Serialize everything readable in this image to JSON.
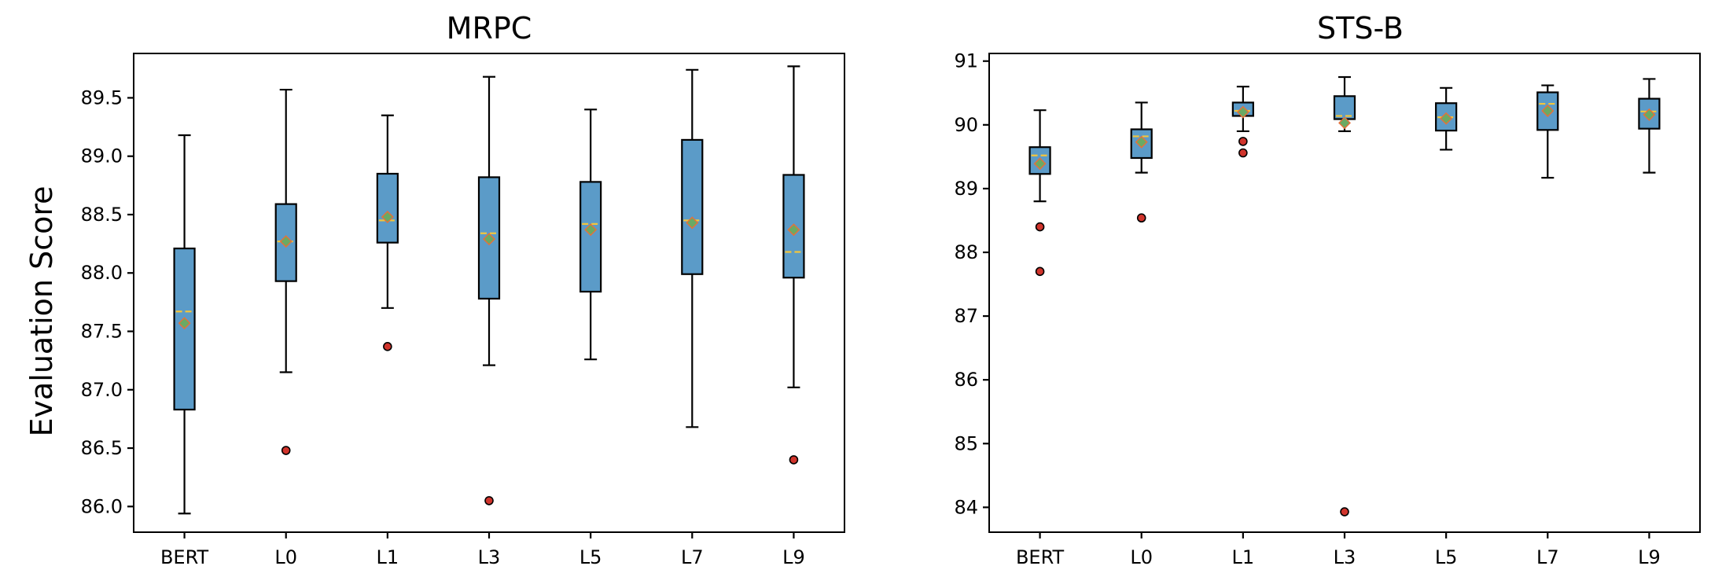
{
  "chart_data": [
    {
      "type": "box",
      "title": "MRPC",
      "ylabel": "Evaluation Score",
      "categories": [
        "BERT",
        "L0",
        "L1",
        "L3",
        "L5",
        "L7",
        "L9"
      ],
      "ylim": [
        85.78,
        89.88
      ],
      "yticks": [
        86.0,
        86.5,
        87.0,
        87.5,
        88.0,
        88.5,
        89.0,
        89.5
      ],
      "ytick_labels": [
        "86.0",
        "86.5",
        "87.0",
        "87.5",
        "88.0",
        "88.5",
        "89.0",
        "89.5"
      ],
      "grid": false,
      "boxes": [
        {
          "label": "BERT",
          "whislo": 85.94,
          "q1": 86.83,
          "med": 87.67,
          "mean": 87.57,
          "q3": 88.21,
          "whishi": 89.18,
          "fliers": []
        },
        {
          "label": "L0",
          "whislo": 87.15,
          "q1": 87.93,
          "med": 88.27,
          "mean": 88.27,
          "q3": 88.59,
          "whishi": 89.57,
          "fliers": [
            86.48
          ]
        },
        {
          "label": "L1",
          "whislo": 87.7,
          "q1": 88.26,
          "med": 88.45,
          "mean": 88.48,
          "q3": 88.85,
          "whishi": 89.35,
          "fliers": [
            87.37
          ]
        },
        {
          "label": "L3",
          "whislo": 87.21,
          "q1": 87.78,
          "med": 88.34,
          "mean": 88.29,
          "q3": 88.82,
          "whishi": 89.68,
          "fliers": [
            86.05
          ]
        },
        {
          "label": "L5",
          "whislo": 87.26,
          "q1": 87.84,
          "med": 88.42,
          "mean": 88.37,
          "q3": 88.78,
          "whishi": 89.4,
          "fliers": []
        },
        {
          "label": "L7",
          "whislo": 86.68,
          "q1": 87.99,
          "med": 88.45,
          "mean": 88.43,
          "q3": 89.14,
          "whishi": 89.74,
          "fliers": []
        },
        {
          "label": "L9",
          "whislo": 87.02,
          "q1": 87.96,
          "med": 88.18,
          "mean": 88.37,
          "q3": 88.84,
          "whishi": 89.77,
          "fliers": [
            86.4
          ]
        }
      ]
    },
    {
      "type": "box",
      "title": "STS-B",
      "ylabel": "",
      "categories": [
        "BERT",
        "L0",
        "L1",
        "L3",
        "L5",
        "L7",
        "L9"
      ],
      "ylim": [
        83.61,
        91.12
      ],
      "yticks": [
        84,
        85,
        86,
        87,
        88,
        89,
        90,
        91
      ],
      "ytick_labels": [
        "84",
        "85",
        "86",
        "87",
        "88",
        "89",
        "90",
        "91"
      ],
      "grid": false,
      "boxes": [
        {
          "label": "BERT",
          "whislo": 88.8,
          "q1": 89.23,
          "med": 89.52,
          "mean": 89.39,
          "q3": 89.65,
          "whishi": 90.23,
          "fliers": [
            88.4,
            87.7
          ]
        },
        {
          "label": "L0",
          "whislo": 89.25,
          "q1": 89.48,
          "med": 89.82,
          "mean": 89.73,
          "q3": 89.93,
          "whishi": 90.35,
          "fliers": [
            88.54
          ]
        },
        {
          "label": "L1",
          "whislo": 89.9,
          "q1": 90.14,
          "med": 90.22,
          "mean": 90.2,
          "q3": 90.35,
          "whishi": 90.6,
          "fliers": [
            89.74,
            89.56
          ]
        },
        {
          "label": "L3",
          "whislo": 89.9,
          "q1": 90.09,
          "med": 90.14,
          "mean": 90.03,
          "q3": 90.45,
          "whishi": 90.75,
          "fliers": [
            83.93
          ]
        },
        {
          "label": "L5",
          "whislo": 89.61,
          "q1": 89.91,
          "med": 90.12,
          "mean": 90.1,
          "q3": 90.34,
          "whishi": 90.58,
          "fliers": []
        },
        {
          "label": "L7",
          "whislo": 89.17,
          "q1": 89.92,
          "med": 90.33,
          "mean": 90.22,
          "q3": 90.51,
          "whishi": 90.62,
          "fliers": []
        },
        {
          "label": "L9",
          "whislo": 89.25,
          "q1": 89.94,
          "med": 90.21,
          "mean": 90.16,
          "q3": 90.41,
          "whishi": 90.72,
          "fliers": []
        }
      ]
    }
  ],
  "colors": {
    "box_fill": "#5b9bc8",
    "median": "#f2c53d",
    "mean_marker": "#6aaa64",
    "flier": "#d0342c"
  }
}
